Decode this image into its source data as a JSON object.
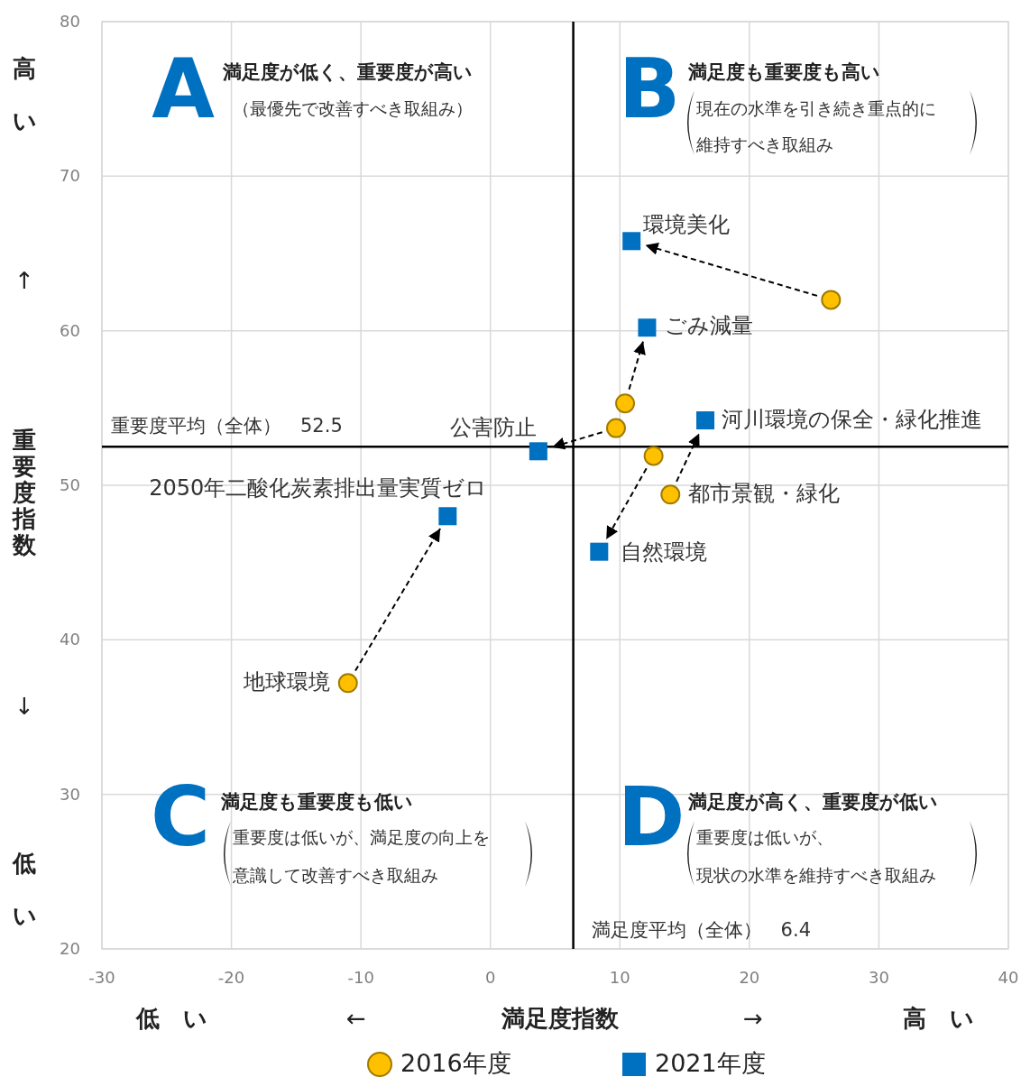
{
  "chart_data": {
    "type": "scatter",
    "xlabel": "満足度指数",
    "ylabel": "重要度指数",
    "xlim": [
      -30,
      40
    ],
    "xticks": [
      -30,
      -20,
      -10,
      0,
      10,
      20,
      30,
      40
    ],
    "ylim": [
      20,
      80
    ],
    "yticks": [
      20,
      30,
      40,
      50,
      60,
      70,
      80
    ],
    "grid": true,
    "legend": "bottom",
    "series": [
      {
        "name": "2016年度",
        "color": "#ffc000",
        "marker": "circle",
        "x": [
          26.3,
          10.4,
          9.7,
          12.6,
          13.9,
          -11.0
        ],
        "values": [
          62.0,
          55.3,
          53.7,
          51.9,
          49.4,
          37.2
        ]
      },
      {
        "name": "2021年度",
        "color": "#0070c0",
        "marker": "square",
        "x": [
          10.9,
          12.1,
          3.7,
          8.4,
          16.6,
          -3.3
        ],
        "values": [
          65.8,
          60.2,
          52.2,
          45.7,
          54.2,
          48.0
        ]
      }
    ],
    "ref_lines": [
      {
        "axis": "x",
        "value": 6.4,
        "label": "満足度平均（全体）　6.4",
        "color": "#000000"
      },
      {
        "axis": "y",
        "value": 52.5,
        "label": "重要度平均（全体）　52.5",
        "color": "#000000"
      }
    ],
    "annotations": [
      "A",
      "満足度が低く、重要度が高い",
      "（最優先で改善すべき取組み）",
      "B",
      "満足度も重要度も高い",
      "現在の水準を引き続き重点的に",
      "維持すべき取組み",
      "C",
      "満足度も重要度も低い",
      "重要度は低いが、満足度の向上を",
      "意識して改善すべき取組み",
      "D",
      "満足度が高く、重要度が低い",
      "重要度は低いが、",
      "現状の水準を維持すべき取組み",
      "高い",
      "↑",
      "↓",
      "低い",
      "低　い",
      "←",
      "→",
      "高　い",
      {
        "text": "環境美化",
        "x": 10.9,
        "y": 65.8
      },
      {
        "text": "ごみ減量",
        "x": 12.1,
        "y": 60.2
      },
      {
        "text": "公害防止",
        "x": 3.7,
        "y": 52.2
      },
      {
        "text": "河川環境の保全・緑化推進",
        "x": 16.6,
        "y": 54.2
      },
      {
        "text": "自然環境",
        "x": 8.4,
        "y": 45.7
      },
      {
        "text": "2050年二酸化炭素排出量実質ゼロ",
        "x": -3.3,
        "y": 48.0
      },
      {
        "text": "都市景観・緑化",
        "x": 13.9,
        "y": 49.4
      },
      {
        "text": "地球環境",
        "x": -11.0,
        "y": 37.2
      }
    ]
  }
}
